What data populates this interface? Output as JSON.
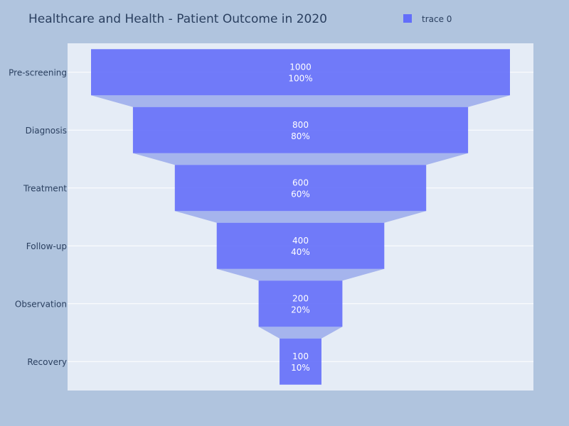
{
  "chart_data": {
    "type": "funnel",
    "title": "Healthcare and Health - Patient Outcome in 2020",
    "categories": [
      "Pre-screening",
      "Diagnosis",
      "Treatment",
      "Follow-up",
      "Observation",
      "Recovery"
    ],
    "series": [
      {
        "name": "trace 0",
        "values": [
          1000,
          800,
          600,
          400,
          200,
          100
        ],
        "percent_labels": [
          "100%",
          "80%",
          "60%",
          "40%",
          "20%",
          "10%"
        ]
      }
    ],
    "legend": {
      "position": "top-right"
    },
    "grid": true
  },
  "colors": {
    "page_background": "#b0c4de",
    "plot_background": "#e5ecf6",
    "bar": "#636efa",
    "connector": "#a5b4ed",
    "grid": "#ffffff",
    "text": "#2a3f5f"
  }
}
